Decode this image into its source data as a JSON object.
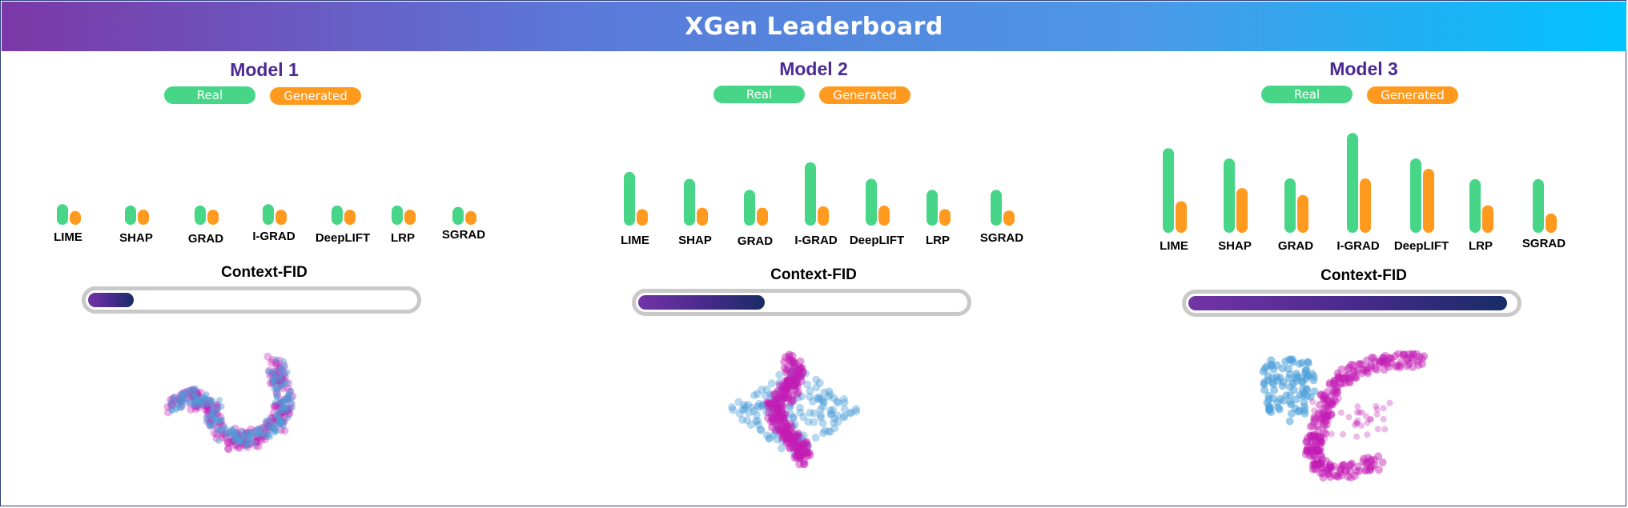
{
  "header": {
    "title": "XGen Leaderboard"
  },
  "legend": {
    "real_label": "Real",
    "generated_label": "Generated"
  },
  "colors": {
    "real": "#47d688",
    "generated": "#ff9a1f",
    "real_points": "#4a9ed8",
    "generated_points": "#c41cb4"
  },
  "context_fid_label": "Context-FID",
  "chart_data": [
    {
      "type": "bar",
      "title": "Model 1",
      "categories": [
        "LIME",
        "SHAP",
        "GRAD",
        "I-GRAD",
        "DeepLIFT",
        "LRP",
        "SGRAD"
      ],
      "series": [
        {
          "name": "Real",
          "values": [
            3.0,
            2.8,
            2.8,
            3.0,
            2.8,
            2.8,
            2.6
          ]
        },
        {
          "name": "Generated",
          "values": [
            2.0,
            2.2,
            2.2,
            2.2,
            2.2,
            2.2,
            2.0
          ]
        }
      ],
      "context_fid_fraction": 0.14
    },
    {
      "type": "bar",
      "title": "Model 2",
      "categories": [
        "LIME",
        "SHAP",
        "GRAD",
        "I-GRAD",
        "DeepLIFT",
        "LRP",
        "SGRAD"
      ],
      "series": [
        {
          "name": "Real",
          "values": [
            7.8,
            6.8,
            5.2,
            9.2,
            6.8,
            5.2,
            5.2
          ]
        },
        {
          "name": "Generated",
          "values": [
            2.4,
            2.6,
            2.6,
            2.8,
            2.9,
            2.4,
            2.2
          ]
        }
      ],
      "context_fid_fraction": 0.39
    },
    {
      "type": "bar",
      "title": "Model 3",
      "categories": [
        "LIME",
        "SHAP",
        "GRAD",
        "I-GRAD",
        "DeepLIFT",
        "LRP",
        "SGRAD"
      ],
      "series": [
        {
          "name": "Real",
          "values": [
            12.3,
            10.8,
            7.9,
            14.5,
            10.8,
            7.8,
            7.8
          ]
        },
        {
          "name": "Generated",
          "values": [
            4.6,
            6.5,
            5.5,
            7.9,
            9.3,
            4.0,
            2.8
          ]
        }
      ],
      "context_fid_fraction": 0.98
    }
  ]
}
